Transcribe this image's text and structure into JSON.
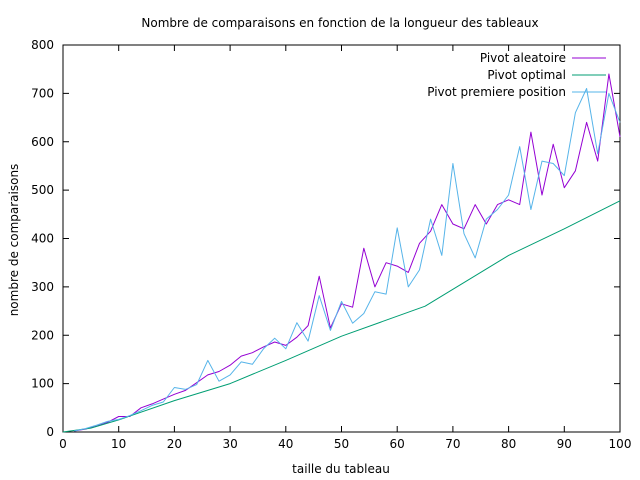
{
  "chart_data": {
    "type": "line",
    "title": "Nombre de comparaisons en fonction de la longueur des tableaux",
    "xlabel": "taille du tableau",
    "ylabel": "nombre de comparaisons",
    "xlim": [
      0,
      100
    ],
    "ylim": [
      0,
      800
    ],
    "xticks": [
      0,
      10,
      20,
      30,
      40,
      50,
      60,
      70,
      80,
      90,
      100
    ],
    "yticks": [
      0,
      100,
      200,
      300,
      400,
      500,
      600,
      700,
      800
    ],
    "legend_position": "top-right",
    "series": [
      {
        "name": "Pivot aleatoire",
        "color": "#9400d3",
        "x": [
          2,
          4,
          6,
          8,
          10,
          12,
          14,
          16,
          18,
          20,
          22,
          24,
          26,
          28,
          30,
          32,
          34,
          36,
          38,
          40,
          42,
          44,
          46,
          48,
          50,
          52,
          54,
          56,
          58,
          60,
          62,
          64,
          66,
          68,
          70,
          72,
          74,
          76,
          78,
          80,
          82,
          84,
          86,
          88,
          90,
          92,
          94,
          96,
          98,
          100
        ],
        "y": [
          2,
          6,
          12,
          20,
          32,
          32,
          50,
          58,
          68,
          78,
          86,
          102,
          118,
          125,
          138,
          157,
          164,
          176,
          186,
          179,
          196,
          220,
          322,
          215,
          265,
          258,
          380,
          300,
          350,
          343,
          330,
          390,
          415,
          470,
          430,
          420,
          470,
          430,
          470,
          480,
          470,
          620,
          490,
          595,
          505,
          540,
          640,
          560,
          740,
          610
        ]
      },
      {
        "name": "Pivot optimal",
        "color": "#009e73",
        "x": [
          0,
          5,
          10,
          20,
          30,
          40,
          50,
          65,
          80,
          90,
          100
        ],
        "y": [
          0,
          8,
          25,
          65,
          100,
          148,
          198,
          260,
          365,
          420,
          478
        ]
      },
      {
        "name": "Pivot premiere position",
        "color": "#56b4e9",
        "x": [
          2,
          4,
          6,
          8,
          10,
          12,
          14,
          16,
          18,
          20,
          22,
          24,
          26,
          28,
          30,
          32,
          34,
          36,
          38,
          40,
          42,
          44,
          46,
          48,
          50,
          52,
          54,
          56,
          58,
          60,
          62,
          64,
          66,
          68,
          70,
          72,
          74,
          76,
          78,
          80,
          82,
          84,
          86,
          88,
          90,
          92,
          94,
          96,
          98,
          100
        ],
        "y": [
          2,
          7,
          14,
          22,
          26,
          34,
          44,
          55,
          62,
          92,
          88,
          98,
          148,
          105,
          118,
          145,
          140,
          172,
          194,
          172,
          226,
          188,
          282,
          210,
          270,
          225,
          245,
          290,
          285,
          422,
          300,
          335,
          440,
          365,
          555,
          410,
          360,
          440,
          460,
          490,
          590,
          460,
          560,
          555,
          530,
          660,
          710,
          575,
          700,
          640
        ]
      }
    ]
  }
}
